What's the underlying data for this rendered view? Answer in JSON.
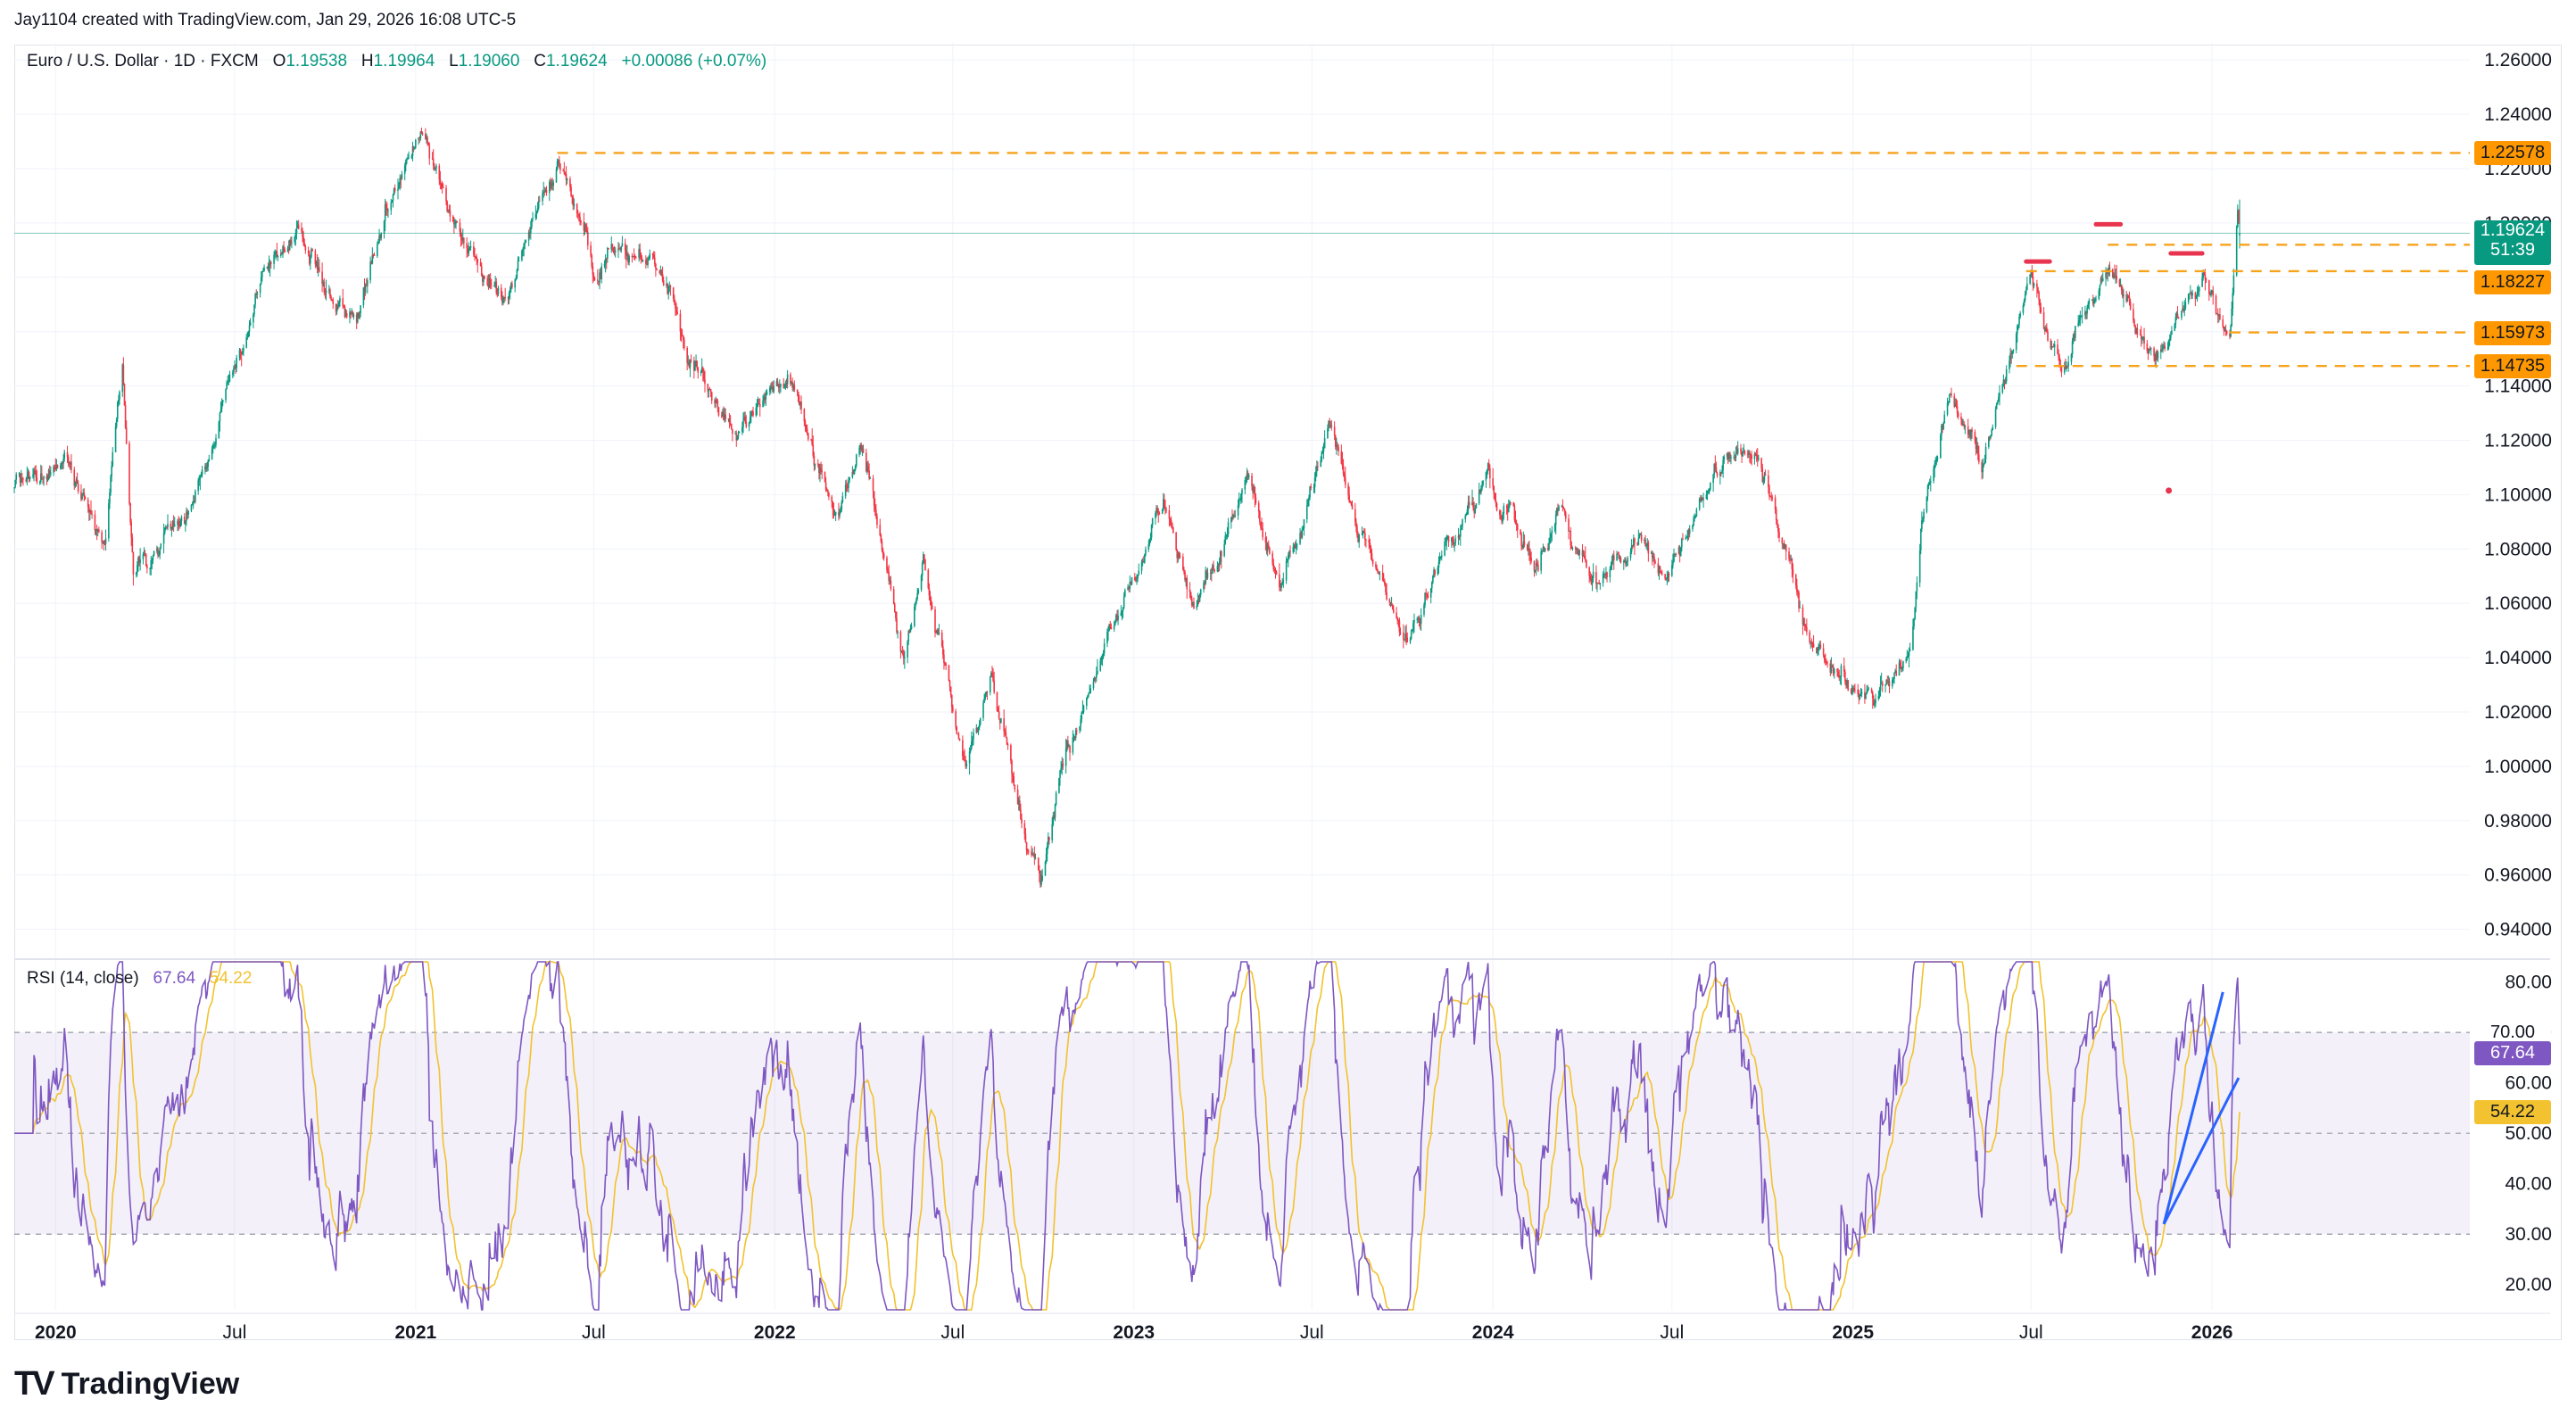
{
  "header": {
    "credit": "Jay1104 created with TradingView.com, Jan 29, 2026 16:08 UTC-5"
  },
  "legend": {
    "symbol": "Euro / U.S. Dollar · 1D · FXCM",
    "open_label": "O",
    "open": "1.19538",
    "high_label": "H",
    "high": "1.19964",
    "low_label": "L",
    "low": "1.19060",
    "close_label": "C",
    "close": "1.19624",
    "change": "+0.00086 (+0.07%)"
  },
  "rsi_legend": {
    "name": "RSI (14, close)",
    "rsi": "67.64",
    "ma": "54.22"
  },
  "price_tag": {
    "price": "1.19624",
    "countdown": "51:39"
  },
  "level_tags": [
    "1.22578",
    "1.19200",
    "1.18227",
    "1.15973",
    "1.14735"
  ],
  "rsi_tags": {
    "rsi": "67.64",
    "rsi_hidden": "70.00",
    "ma": "54.22"
  },
  "footer": {
    "brand": "TradingView"
  },
  "colors": {
    "up": "#089981",
    "down": "#f23645",
    "level": "#f7a21b",
    "rsi": "#7e57c2",
    "rsi_ma": "#f2c230",
    "trendline": "#2962ff",
    "marker": "#e8344e"
  },
  "chart_data": [
    {
      "type": "candlestick",
      "title": "Euro / U.S. Dollar · 1D · FXCM",
      "y_ticks": [
        "1.26000",
        "1.24000",
        "1.22000",
        "1.20000",
        "1.18000",
        "1.16000",
        "1.14000",
        "1.12000",
        "1.10000",
        "1.08000",
        "1.06000",
        "1.04000",
        "1.02000",
        "1.00000",
        "0.98000",
        "0.96000",
        "0.94000"
      ],
      "ylim": [
        0.93,
        1.265
      ],
      "x_ticks": [
        {
          "label": "2020",
          "date": "2020-01-01",
          "bold": true
        },
        {
          "label": "Jul",
          "date": "2020-07-01",
          "bold": false
        },
        {
          "label": "2021",
          "date": "2021-01-01",
          "bold": true
        },
        {
          "label": "Jul",
          "date": "2021-07-01",
          "bold": false
        },
        {
          "label": "2022",
          "date": "2022-01-01",
          "bold": true
        },
        {
          "label": "Jul",
          "date": "2022-07-01",
          "bold": false
        },
        {
          "label": "2023",
          "date": "2023-01-01",
          "bold": true
        },
        {
          "label": "Jul",
          "date": "2023-07-01",
          "bold": false
        },
        {
          "label": "2024",
          "date": "2024-01-01",
          "bold": true
        },
        {
          "label": "Jul",
          "date": "2024-07-01",
          "bold": false
        },
        {
          "label": "2025",
          "date": "2025-01-01",
          "bold": true
        },
        {
          "label": "Jul",
          "date": "2025-07-01",
          "bold": false
        },
        {
          "label": "2026",
          "date": "2026-01-01",
          "bold": true
        }
      ],
      "xlim": [
        "2019-11-20",
        "2026-09-20"
      ],
      "close_path": [
        {
          "date": "2019-11-20",
          "close": 1.105
        },
        {
          "date": "2020-01-10",
          "close": 1.11
        },
        {
          "date": "2020-02-20",
          "close": 1.08
        },
        {
          "date": "2020-03-09",
          "close": 1.145
        },
        {
          "date": "2020-03-20",
          "close": 1.07
        },
        {
          "date": "2020-04-20",
          "close": 1.085
        },
        {
          "date": "2020-05-20",
          "close": 1.09
        },
        {
          "date": "2020-06-15",
          "close": 1.13
        },
        {
          "date": "2020-07-31",
          "close": 1.185
        },
        {
          "date": "2020-09-01",
          "close": 1.195
        },
        {
          "date": "2020-10-01",
          "close": 1.175
        },
        {
          "date": "2020-11-04",
          "close": 1.165
        },
        {
          "date": "2020-12-01",
          "close": 1.205
        },
        {
          "date": "2021-01-06",
          "close": 1.232
        },
        {
          "date": "2021-02-01",
          "close": 1.21
        },
        {
          "date": "2021-03-31",
          "close": 1.172
        },
        {
          "date": "2021-05-25",
          "close": 1.225
        },
        {
          "date": "2021-06-30",
          "close": 1.186
        },
        {
          "date": "2021-09-01",
          "close": 1.185
        },
        {
          "date": "2021-10-01",
          "close": 1.158
        },
        {
          "date": "2021-11-24",
          "close": 1.12
        },
        {
          "date": "2022-01-14",
          "close": 1.145
        },
        {
          "date": "2022-03-07",
          "close": 1.087
        },
        {
          "date": "2022-03-31",
          "close": 1.115
        },
        {
          "date": "2022-05-13",
          "close": 1.038
        },
        {
          "date": "2022-06-01",
          "close": 1.075
        },
        {
          "date": "2022-07-14",
          "close": 0.998
        },
        {
          "date": "2022-08-10",
          "close": 1.03
        },
        {
          "date": "2022-09-28",
          "close": 0.957
        },
        {
          "date": "2022-10-27",
          "close": 1.005
        },
        {
          "date": "2022-11-15",
          "close": 1.03
        },
        {
          "date": "2023-01-31",
          "close": 1.095
        },
        {
          "date": "2023-03-01",
          "close": 1.055
        },
        {
          "date": "2023-04-26",
          "close": 1.105
        },
        {
          "date": "2023-05-31",
          "close": 1.065
        },
        {
          "date": "2023-07-18",
          "close": 1.125
        },
        {
          "date": "2023-08-15",
          "close": 1.09
        },
        {
          "date": "2023-10-03",
          "close": 1.048
        },
        {
          "date": "2023-12-28",
          "close": 1.11
        },
        {
          "date": "2024-02-14",
          "close": 1.072
        },
        {
          "date": "2024-03-08",
          "close": 1.095
        },
        {
          "date": "2024-04-16",
          "close": 1.062
        },
        {
          "date": "2024-06-03",
          "close": 1.088
        },
        {
          "date": "2024-06-26",
          "close": 1.068
        },
        {
          "date": "2024-08-26",
          "close": 1.118
        },
        {
          "date": "2024-09-25",
          "close": 1.115
        },
        {
          "date": "2024-11-22",
          "close": 1.04
        },
        {
          "date": "2025-01-13",
          "close": 1.022
        },
        {
          "date": "2025-02-28",
          "close": 1.04
        },
        {
          "date": "2025-03-11",
          "close": 1.09
        },
        {
          "date": "2025-04-11",
          "close": 1.135
        },
        {
          "date": "2025-05-12",
          "close": 1.11
        },
        {
          "date": "2025-06-16",
          "close": 1.155
        },
        {
          "date": "2025-07-01",
          "close": 1.18
        },
        {
          "date": "2025-07-31",
          "close": 1.142
        },
        {
          "date": "2025-09-17",
          "close": 1.185
        },
        {
          "date": "2025-11-05",
          "close": 1.148
        },
        {
          "date": "2025-12-24",
          "close": 1.178
        },
        {
          "date": "2026-01-19",
          "close": 1.16
        },
        {
          "date": "2026-01-27",
          "close": 1.205
        },
        {
          "date": "2026-01-29",
          "close": 1.19624
        }
      ],
      "horizontal_levels": [
        {
          "label": "1.22578",
          "value": 1.22578,
          "from": "2021-05-25"
        },
        {
          "label": "1.19200",
          "value": 1.192,
          "from": "2025-09-17"
        },
        {
          "label": "1.18227",
          "value": 1.18227,
          "from": "2025-06-26"
        },
        {
          "label": "1.15973",
          "value": 1.15973,
          "from": "2026-01-19"
        },
        {
          "label": "1.14735",
          "value": 1.14735,
          "from": "2025-06-16"
        }
      ],
      "highlight_marks": [
        {
          "date_from": "2025-06-26",
          "date_to": "2025-07-20",
          "value": 1.1858
        },
        {
          "date_from": "2025-09-05",
          "date_to": "2025-09-30",
          "value": 1.1995
        },
        {
          "date_from": "2025-11-20",
          "date_to": "2025-12-22",
          "value": 1.1888
        }
      ],
      "dot": {
        "date": "2025-11-18",
        "value": 1.1015
      },
      "current_price": 1.19624
    },
    {
      "type": "line",
      "title": "RSI (14, close)",
      "y_ticks": [
        "80.00",
        "70.00",
        "60.00",
        "50.00",
        "40.00",
        "30.00",
        "20.00"
      ],
      "ylim": [
        15,
        84
      ],
      "band": [
        30,
        70
      ],
      "midline": 50,
      "series": [
        {
          "name": "RSI",
          "last": 67.64
        },
        {
          "name": "MA",
          "last": 54.22
        }
      ],
      "trendlines": [
        {
          "from": {
            "date": "2025-11-13",
            "value": 32
          },
          "to": {
            "date": "2026-01-12",
            "value": 78
          }
        },
        {
          "from": {
            "date": "2025-11-13",
            "value": 32
          },
          "to": {
            "date": "2026-01-28",
            "value": 61
          }
        }
      ]
    }
  ]
}
